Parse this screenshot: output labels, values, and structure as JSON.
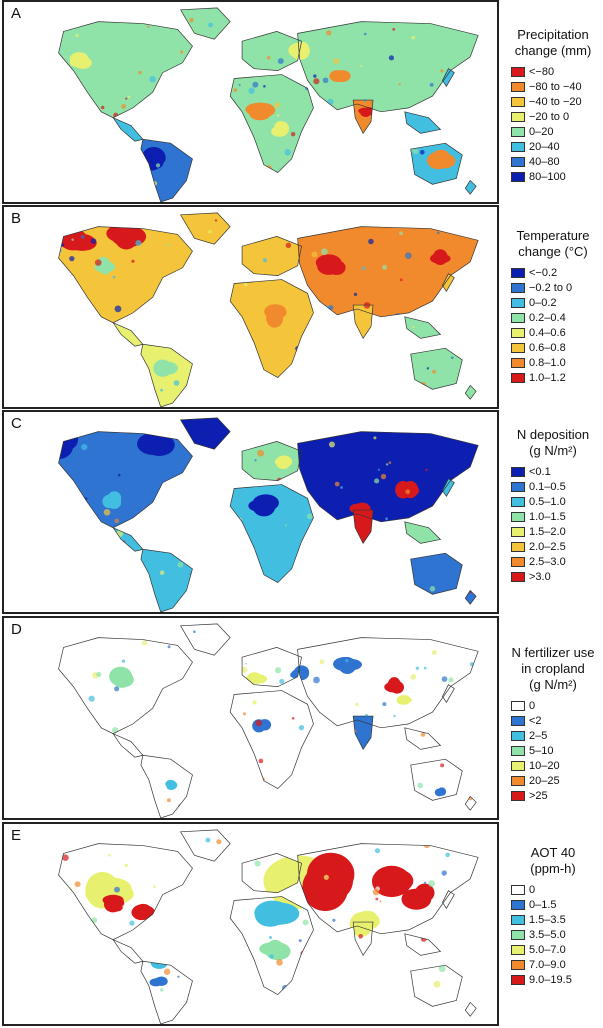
{
  "panels": [
    {
      "letter": "A",
      "legend_title": [
        "Precipitation",
        "change (mm)"
      ],
      "legend": [
        {
          "label": "<−80",
          "color": "#d7191c"
        },
        {
          "label": "−80 to −40",
          "color": "#f08a2c"
        },
        {
          "label": "−40 to −20",
          "color": "#f4c53a"
        },
        {
          "label": "−20 to 0",
          "color": "#e8f070"
        },
        {
          "label": "0–20",
          "color": "#8fe3a8"
        },
        {
          "label": "20–40",
          "color": "#42bfe0"
        },
        {
          "label": "40–80",
          "color": "#2f74d0"
        },
        {
          "label": "80–100",
          "color": "#0c1fb0"
        }
      ]
    },
    {
      "letter": "B",
      "legend_title": [
        "Temperature",
        "change (°C)"
      ],
      "legend": [
        {
          "label": "<−0.2",
          "color": "#0c1fb0"
        },
        {
          "label": "−0.2 to 0",
          "color": "#2f74d0"
        },
        {
          "label": "0–0.2",
          "color": "#42bfe0"
        },
        {
          "label": "0.2–0.4",
          "color": "#8fe3a8"
        },
        {
          "label": "0.4–0.6",
          "color": "#e8f070"
        },
        {
          "label": "0.6–0.8",
          "color": "#f4c53a"
        },
        {
          "label": "0.8–1.0",
          "color": "#f08a2c"
        },
        {
          "label": "1.0–1.2",
          "color": "#d7191c"
        }
      ]
    },
    {
      "letter": "C",
      "legend_title": [
        "N deposition",
        "(g N/m²)"
      ],
      "legend": [
        {
          "label": "<0.1",
          "color": "#0c1fb0"
        },
        {
          "label": "0.1–0.5",
          "color": "#2f74d0"
        },
        {
          "label": "0.5–1.0",
          "color": "#42bfe0"
        },
        {
          "label": "1.0–1.5",
          "color": "#8fe3a8"
        },
        {
          "label": "1.5–2.0",
          "color": "#e8f070"
        },
        {
          "label": "2.0–2.5",
          "color": "#f4c53a"
        },
        {
          "label": "2.5–3.0",
          "color": "#f08a2c"
        },
        {
          "label": ">3.0",
          "color": "#d7191c"
        }
      ]
    },
    {
      "letter": "D",
      "legend_title": [
        "N fertilizer use",
        "in cropland",
        "(g N/m²)"
      ],
      "legend": [
        {
          "label": "0",
          "color": "#ffffff"
        },
        {
          "label": "<2",
          "color": "#2f74d0"
        },
        {
          "label": "2–5",
          "color": "#42bfe0"
        },
        {
          "label": "5–10",
          "color": "#8fe3a8"
        },
        {
          "label": "10–20",
          "color": "#e8f070"
        },
        {
          "label": "20–25",
          "color": "#f08a2c"
        },
        {
          "label": ">25",
          "color": "#d7191c"
        }
      ]
    },
    {
      "letter": "E",
      "legend_title": [
        "AOT 40",
        "(ppm-h)"
      ],
      "legend": [
        {
          "label": "0",
          "color": "#ffffff"
        },
        {
          "label": "0–1.5",
          "color": "#2f74d0"
        },
        {
          "label": "1.5–3.5",
          "color": "#42bfe0"
        },
        {
          "label": "3.5–5.0",
          "color": "#8fe3a8"
        },
        {
          "label": "5.0–7.0",
          "color": "#e8f070"
        },
        {
          "label": "7.0–9.0",
          "color": "#f08a2c"
        },
        {
          "label": "9.0–19.5",
          "color": "#d7191c"
        }
      ]
    }
  ]
}
